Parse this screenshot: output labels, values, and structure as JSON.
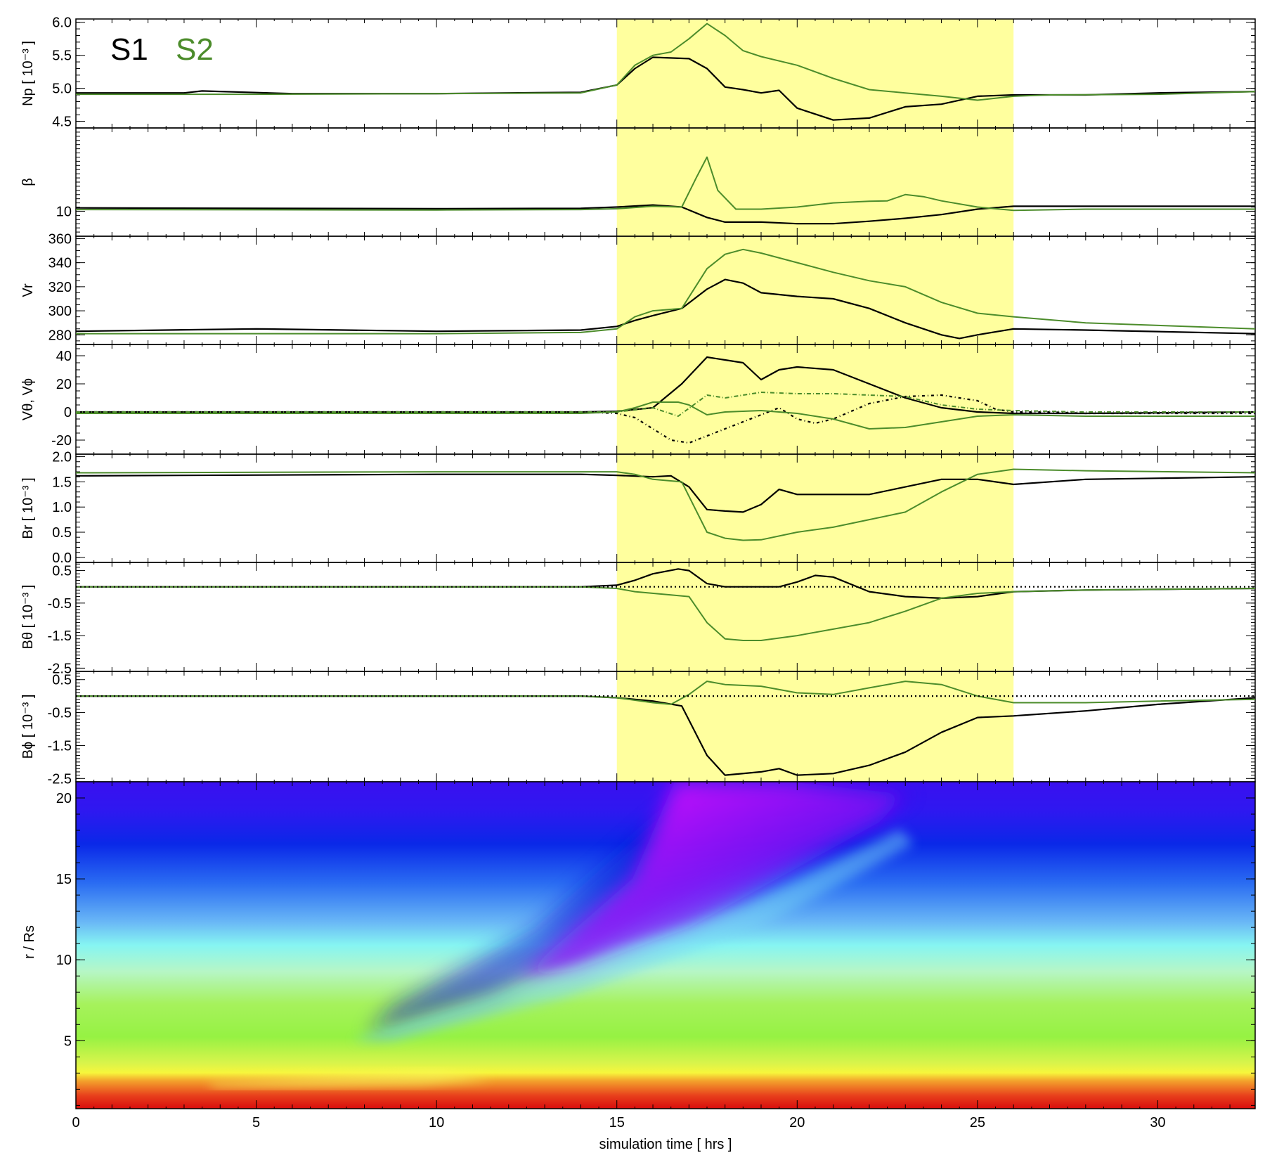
{
  "legend": [
    {
      "label": "S1",
      "color": "#000000"
    },
    {
      "label": "S2",
      "color": "#4c8c2b"
    }
  ],
  "chart_data": {
    "type": "line",
    "xlabel": "simulation time  [ hrs ]",
    "xlim": [
      0,
      32.7
    ],
    "xticks": [
      "0",
      "5",
      "10",
      "15",
      "20",
      "25",
      "30"
    ],
    "highlight_band": {
      "x": [
        15,
        26
      ],
      "color": "#ffff9e"
    },
    "panels": [
      {
        "id": "np",
        "ylabel": "Np [ 10⁻³ ]",
        "ylim": [
          4.4,
          6.05
        ],
        "yticks": [
          "4.5",
          "5.0",
          "5.5",
          "6.0"
        ],
        "series": [
          {
            "name": "S1",
            "color": "#000000",
            "dash": "",
            "x": [
              0,
              3,
              3.5,
              6,
              10,
              14,
              15,
              15.5,
              16,
              17,
              17.5,
              18,
              18.5,
              19,
              19.5,
              20,
              21,
              22,
              23,
              24,
              25,
              26,
              28,
              30,
              32.7
            ],
            "y": [
              4.93,
              4.93,
              4.96,
              4.92,
              4.92,
              4.94,
              5.05,
              5.3,
              5.47,
              5.45,
              5.3,
              5.02,
              4.98,
              4.93,
              4.97,
              4.7,
              4.52,
              4.55,
              4.72,
              4.76,
              4.88,
              4.9,
              4.9,
              4.93,
              4.95
            ]
          },
          {
            "name": "S2",
            "color": "#4c8c2b",
            "dash": "",
            "x": [
              0,
              5,
              10,
              14,
              15,
              15.5,
              16,
              16.5,
              17,
              17.5,
              18,
              18.5,
              19,
              20,
              21,
              22,
              23,
              24,
              25,
              26,
              27,
              30,
              32.7
            ],
            "y": [
              4.91,
              4.91,
              4.92,
              4.93,
              5.05,
              5.35,
              5.5,
              5.55,
              5.75,
              5.98,
              5.8,
              5.57,
              5.48,
              5.35,
              5.15,
              4.98,
              4.93,
              4.88,
              4.82,
              4.88,
              4.9,
              4.91,
              4.95
            ]
          }
        ]
      },
      {
        "id": "beta",
        "ylabel": "β",
        "ylim": [
          4,
          30
        ],
        "yticks": [
          "10"
        ],
        "series": [
          {
            "name": "S1",
            "color": "#000000",
            "dash": "",
            "x": [
              0,
              10,
              14,
              15,
              16,
              16.8,
              17.5,
              18,
              19,
              20,
              21,
              22,
              23,
              24,
              25,
              26,
              28,
              32.7
            ],
            "y": [
              10.8,
              10.6,
              10.7,
              11,
              11.5,
              11,
              8.5,
              7.4,
              7.4,
              7.0,
              7.0,
              7.6,
              8.3,
              9.2,
              10.5,
              11.2,
              11.2,
              11.2
            ]
          },
          {
            "name": "S2",
            "color": "#4c8c2b",
            "dash": "",
            "x": [
              0,
              10,
              14,
              15,
              16,
              16.8,
              17.2,
              17.5,
              17.8,
              18.3,
              19,
              20,
              21,
              22,
              22.5,
              23,
              23.5,
              24,
              25,
              26,
              28,
              32.7
            ],
            "y": [
              10.4,
              10.3,
              10.4,
              10.6,
              11.2,
              11.0,
              18,
              23,
              15,
              10.5,
              10.5,
              11,
              12,
              12.4,
              12.5,
              14,
              13.5,
              12.5,
              11,
              10.2,
              10.5,
              10.5
            ]
          }
        ]
      },
      {
        "id": "vr",
        "ylabel": "Vr",
        "ylim": [
          272,
          362
        ],
        "yticks": [
          "280",
          "300",
          "320",
          "340",
          "360"
        ],
        "series": [
          {
            "name": "S1",
            "color": "#000000",
            "dash": "",
            "x": [
              0,
              5,
              10,
              14,
              15,
              15.5,
              16,
              16.8,
              17.5,
              18,
              18.5,
              19,
              20,
              21,
              22,
              23,
              24,
              24.5,
              25,
              26,
              28,
              32.7
            ],
            "y": [
              283,
              285,
              283,
              284,
              287,
              292,
              296,
              302,
              318,
              326,
              323,
              315,
              312,
              310,
              302,
              290,
              280,
              277,
              280,
              285,
              284,
              281
            ]
          },
          {
            "name": "S2",
            "color": "#4c8c2b",
            "dash": "",
            "x": [
              0,
              5,
              10,
              14,
              15,
              15.5,
              16,
              16.8,
              17.5,
              18,
              18.5,
              19,
              20,
              21,
              22,
              23,
              24,
              25,
              26,
              28,
              32.7
            ],
            "y": [
              281,
              281,
              281,
              282,
              285,
              295,
              300,
              302,
              335,
              347,
              351,
              348,
              340,
              332,
              325,
              320,
              307,
              298,
              295,
              290,
              285
            ]
          }
        ]
      },
      {
        "id": "vth",
        "ylabel": "Vθ, Vϕ",
        "ylim": [
          -30,
          48
        ],
        "yticks": [
          "-20",
          "0",
          "20",
          "40"
        ],
        "series": [
          {
            "name": "S1 Vθ",
            "color": "#000000",
            "dash": "",
            "x": [
              0,
              14,
              15,
              16,
              16.8,
              17.5,
              18,
              18.5,
              19,
              19.5,
              20,
              21,
              22,
              23,
              24,
              25,
              26,
              28,
              32.7
            ],
            "y": [
              0,
              0,
              0.5,
              3,
              20,
              39,
              37,
              35,
              23,
              30,
              32,
              30,
              20,
              10,
              3,
              0,
              -1,
              -1,
              0
            ]
          },
          {
            "name": "S1 Vϕ",
            "color": "#000000",
            "dash": "4,4,1,4",
            "x": [
              0,
              14,
              15,
              15.5,
              16.5,
              17,
              18,
              19,
              19.5,
              20,
              20.5,
              21,
              22,
              23,
              24,
              25,
              25.5,
              26,
              27,
              28,
              32.7
            ],
            "y": [
              0,
              0,
              -1,
              -4,
              -20,
              -22,
              -12,
              -2,
              3,
              -5,
              -8,
              -5,
              6,
              11,
              12,
              8,
              2,
              0,
              0,
              -1,
              -1
            ]
          },
          {
            "name": "S2 Vθ",
            "color": "#4c8c2b",
            "dash": "",
            "x": [
              0,
              14,
              15,
              15.5,
              16,
              16.7,
              17,
              17.5,
              18,
              19,
              20,
              21,
              22,
              23,
              24,
              25,
              26,
              28,
              32.7
            ],
            "y": [
              -1,
              -1,
              0,
              3,
              7,
              7,
              5,
              -2,
              0,
              1,
              -1,
              -5,
              -12,
              -11,
              -7,
              -3,
              -2,
              -3,
              -3
            ]
          },
          {
            "name": "S2 Vϕ",
            "color": "#4c8c2b",
            "dash": "6,3,1,3",
            "x": [
              0,
              14,
              15,
              16,
              16.7,
              17.5,
              18,
              19,
              20,
              21,
              22,
              23,
              24,
              25,
              26,
              28,
              32.7
            ],
            "y": [
              0,
              0,
              0,
              3,
              -3,
              12,
              10,
              14,
              13,
              13,
              12,
              11,
              5,
              2,
              1,
              0,
              0
            ]
          }
        ]
      },
      {
        "id": "br",
        "ylabel": "Br [ 10⁻³ ]",
        "ylim": [
          -0.1,
          2.05
        ],
        "yticks": [
          "0.0",
          "0.5",
          "1.0",
          "1.5",
          "2.0"
        ],
        "series": [
          {
            "name": "S1",
            "color": "#000000",
            "dash": "",
            "x": [
              0,
              10,
              14,
              15,
              16,
              16.5,
              17,
              17.5,
              18,
              18.5,
              19,
              19.5,
              20,
              21,
              22,
              23,
              24,
              25,
              26,
              28,
              32.7
            ],
            "y": [
              1.62,
              1.65,
              1.65,
              1.63,
              1.6,
              1.62,
              1.4,
              0.95,
              0.92,
              0.9,
              1.05,
              1.35,
              1.25,
              1.25,
              1.25,
              1.4,
              1.55,
              1.55,
              1.45,
              1.55,
              1.6
            ]
          },
          {
            "name": "S2",
            "color": "#4c8c2b",
            "dash": "",
            "x": [
              0,
              10,
              14,
              15,
              15.5,
              16,
              16.8,
              17.5,
              18,
              18.5,
              19,
              20,
              21,
              22,
              23,
              24,
              25,
              26,
              28,
              32.7
            ],
            "y": [
              1.68,
              1.7,
              1.7,
              1.7,
              1.65,
              1.55,
              1.5,
              0.5,
              0.38,
              0.34,
              0.35,
              0.5,
              0.6,
              0.75,
              0.9,
              1.3,
              1.65,
              1.75,
              1.72,
              1.68
            ]
          }
        ]
      },
      {
        "id": "bth",
        "ylabel": "Bθ [ 10⁻³ ]",
        "ylim": [
          -2.6,
          0.75
        ],
        "yticks": [
          "-2.5",
          "-1.5",
          "-0.5",
          "0.5"
        ],
        "series": [
          {
            "name": "S1",
            "color": "#000000",
            "dash": "",
            "x": [
              0,
              14,
              15,
              15.5,
              16,
              16.7,
              17,
              17.5,
              18,
              19,
              19.5,
              20,
              20.5,
              21,
              22,
              23,
              24,
              25,
              26,
              28,
              32.7
            ],
            "y": [
              0,
              0,
              0.05,
              0.2,
              0.4,
              0.55,
              0.5,
              0.1,
              0,
              0,
              0,
              0.15,
              0.35,
              0.3,
              -0.15,
              -0.3,
              -0.35,
              -0.3,
              -0.15,
              -0.1,
              -0.05
            ]
          },
          {
            "name": "S2",
            "color": "#4c8c2b",
            "dash": "",
            "x": [
              0,
              14,
              15,
              15.5,
              16.5,
              17,
              17.5,
              18,
              18.5,
              19,
              20,
              21,
              22,
              23,
              24,
              25,
              26,
              28,
              32.7
            ],
            "y": [
              0,
              0,
              -0.05,
              -0.15,
              -0.25,
              -0.3,
              -1.1,
              -1.6,
              -1.65,
              -1.65,
              -1.5,
              -1.3,
              -1.1,
              -0.75,
              -0.35,
              -0.2,
              -0.15,
              -0.1,
              -0.05
            ]
          },
          {
            "name": "zero",
            "color": "#000000",
            "dash": "2,4",
            "x": [
              0,
              32.7
            ],
            "y": [
              0,
              0
            ]
          }
        ]
      },
      {
        "id": "bph",
        "ylabel": "Bϕ [ 10⁻³ ]",
        "ylim": [
          -2.6,
          0.75
        ],
        "yticks": [
          "-2.5",
          "-1.5",
          "-0.5",
          "0.5"
        ],
        "series": [
          {
            "name": "S1",
            "color": "#000000",
            "dash": "",
            "x": [
              0,
              14,
              15,
              16,
              16.8,
              17.5,
              18,
              19,
              19.5,
              20,
              21,
              22,
              23,
              24,
              25,
              26,
              28,
              30,
              32.7
            ],
            "y": [
              0,
              0,
              -0.05,
              -0.15,
              -0.3,
              -1.8,
              -2.4,
              -2.3,
              -2.2,
              -2.4,
              -2.35,
              -2.1,
              -1.7,
              -1.1,
              -0.65,
              -0.6,
              -0.45,
              -0.25,
              -0.05
            ]
          },
          {
            "name": "S2",
            "color": "#4c8c2b",
            "dash": "",
            "x": [
              0,
              14,
              15,
              16,
              16.5,
              17,
              17.5,
              18,
              19,
              20,
              21,
              22,
              23,
              24,
              25,
              26,
              28,
              30,
              32.7
            ],
            "y": [
              0,
              0,
              -0.05,
              -0.2,
              -0.25,
              0.05,
              0.45,
              0.35,
              0.3,
              0.1,
              0.05,
              0.25,
              0.45,
              0.35,
              0,
              -0.2,
              -0.2,
              -0.15,
              -0.1
            ]
          },
          {
            "name": "zero",
            "color": "#000000",
            "dash": "2,4",
            "x": [
              0,
              32.7
            ],
            "y": [
              0,
              0
            ]
          }
        ]
      }
    ],
    "heatmap": {
      "type": "heatmap",
      "ylabel": "r / Rs",
      "ylim": [
        0.8,
        21
      ],
      "yticks": [
        "5",
        "10",
        "15",
        "20"
      ],
      "colormap": "rainbow (red at low r, magenta at high values)"
    }
  }
}
